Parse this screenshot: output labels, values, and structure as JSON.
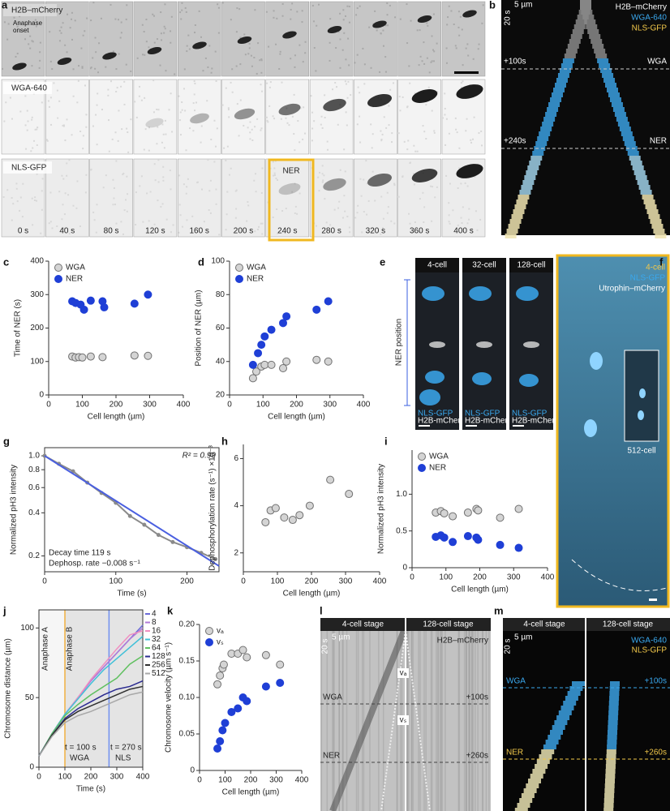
{
  "panel_labels": [
    "a",
    "b",
    "c",
    "d",
    "e",
    "f",
    "g",
    "h",
    "i",
    "j",
    "k",
    "l",
    "m"
  ],
  "panel_a": {
    "rows": [
      "H2B–mCherry",
      "WGA-640",
      "NLS-GFP"
    ],
    "annotation": "Anaphase onset",
    "box_label": "NER",
    "times": [
      "0 s",
      "40 s",
      "80 s",
      "120 s",
      "160 s",
      "200 s",
      "240 s",
      "280 s",
      "320 s",
      "360 s",
      "400 s"
    ]
  },
  "panel_b": {
    "channels": [
      "H2B–mCherry",
      "WGA-640",
      "NLS-GFP"
    ],
    "time_scale": "20 s",
    "length_scale": "5 µm",
    "markers": [
      {
        "time": "+100s",
        "event": "WGA"
      },
      {
        "time": "+240s",
        "event": "NER"
      }
    ]
  },
  "panel_e": {
    "columns": [
      "4-cell",
      "32-cell",
      "128-cell"
    ],
    "axis_label": "NER position",
    "channels": [
      "NLS-GFP",
      "H2B-mCherry"
    ]
  },
  "panel_f": {
    "channels": [
      "4-cell",
      "NLS-GFP",
      "Utrophin–mCherry"
    ],
    "inset_label": "512-cell"
  },
  "panel_l": {
    "stages": [
      "4-cell stage",
      "128-cell stage"
    ],
    "time_scale": "20 s",
    "length_scale": "5 µm",
    "channel": "H2B–mCherry",
    "velocity_labels": [
      "vₐ",
      "vₛ"
    ],
    "markers": [
      {
        "time": "+100s",
        "event": "WGA"
      },
      {
        "time": "+260s",
        "event": "NER"
      }
    ]
  },
  "panel_m": {
    "stages": [
      "4-cell stage",
      "128-cell stage"
    ],
    "time_scale": "20 s",
    "length_scale": "5 µm",
    "channels": [
      "WGA-640",
      "NLS-GFP"
    ],
    "markers": [
      {
        "time": "+100s",
        "event": "WGA"
      },
      {
        "time": "+260s",
        "event": "NER"
      }
    ]
  },
  "chart_data": [
    {
      "type": "scatter",
      "xlabel": "Cell length (µm)",
      "ylabel": "Time of NER (s)",
      "xlim": [
        0,
        400
      ],
      "ylim": [
        0,
        400
      ],
      "xticks": [
        0,
        100,
        200,
        300,
        400
      ],
      "yticks": [
        0,
        100,
        200,
        300,
        400
      ],
      "legend": "upper left",
      "series": [
        {
          "name": "WGA",
          "color": "#d4d4d4",
          "edgecolor": "#707070",
          "x": [
            70,
            80,
            90,
            100,
            125,
            160,
            255,
            295
          ],
          "values": [
            115,
            112,
            113,
            112,
            115,
            113,
            118,
            117
          ]
        },
        {
          "name": "NER",
          "color": "#1f3fd6",
          "x": [
            70,
            80,
            95,
            105,
            125,
            160,
            165,
            255,
            295
          ],
          "values": [
            280,
            275,
            270,
            255,
            282,
            280,
            262,
            273,
            300
          ]
        }
      ]
    },
    {
      "type": "scatter",
      "xlabel": "Cell length (µm)",
      "ylabel": "Position of NER (µm)",
      "xlim": [
        0,
        400
      ],
      "ylim": [
        20,
        100
      ],
      "xticks": [
        0,
        100,
        200,
        300,
        400
      ],
      "yticks": [
        20,
        40,
        60,
        80,
        100
      ],
      "legend": "upper left",
      "series": [
        {
          "name": "WGA",
          "color": "#d4d4d4",
          "edgecolor": "#707070",
          "x": [
            70,
            80,
            95,
            105,
            125,
            160,
            170,
            260,
            295
          ],
          "values": [
            30,
            34,
            37,
            38,
            38,
            36,
            40,
            41,
            40
          ]
        },
        {
          "name": "NER",
          "color": "#1f3fd6",
          "x": [
            70,
            85,
            95,
            105,
            125,
            160,
            170,
            260,
            295
          ],
          "values": [
            38,
            45,
            50,
            55,
            59,
            63,
            67,
            71,
            76
          ]
        }
      ]
    },
    {
      "type": "line",
      "ylog": true,
      "xlabel": "Time (s)",
      "ylabel": "Normalized pH3 intensity",
      "xlim": [
        0,
        245
      ],
      "ylim": [
        0.155,
        1.14
      ],
      "xticks": [
        0,
        100,
        200
      ],
      "yticks": [
        0.2,
        0.4,
        0.6,
        0.8,
        {
          "value": 1,
          "label": "1.0"
        }
      ],
      "x": [
        0,
        20,
        40,
        60,
        80,
        100,
        120,
        140,
        160,
        180,
        200,
        220,
        240
      ],
      "series": [
        {
          "color": "#8a8a8a",
          "values": [
            1.0,
            0.88,
            0.78,
            0.65,
            0.55,
            0.47,
            0.38,
            0.33,
            0.28,
            0.25,
            0.23,
            0.21,
            0.19
          ]
        },
        {
          "color": "#4a5fe0",
          "x": [
            0,
            245
          ],
          "values": [
            1.0,
            0.17
          ]
        }
      ],
      "annotations": [
        {
          "text": "R² = 0.99",
          "color": "#3a4fd6"
        },
        {
          "text": "Decay time 119 s",
          "color": "#3a4fd6"
        },
        {
          "text": "Dephosp. rate −0.008 s⁻¹",
          "color": "#909090"
        }
      ]
    },
    {
      "type": "scatter",
      "xlabel": "Cell length (µm)",
      "ylabel": "Dephosphorylation rate (s⁻¹) ×10⁻³",
      "xlim": [
        0,
        400
      ],
      "ylim": [
        1.2,
        6.6
      ],
      "xticks": [
        0,
        100,
        200,
        300,
        400
      ],
      "yticks": [
        2,
        4,
        6
      ],
      "series": [
        {
          "color": "#d4d4d4",
          "edgecolor": "#707070",
          "x": [
            65,
            80,
            95,
            120,
            145,
            165,
            195,
            255,
            310
          ],
          "values": [
            3.3,
            3.8,
            3.9,
            3.5,
            3.4,
            3.6,
            4.0,
            5.1,
            4.5
          ]
        }
      ]
    },
    {
      "type": "scatter",
      "xlabel": "Cell length (µm)",
      "ylabel": "Normalized pH3 intensity",
      "xlim": [
        0,
        400
      ],
      "ylim": [
        0,
        1.6
      ],
      "xticks": [
        0,
        100,
        200,
        300,
        400
      ],
      "yticks": [
        0,
        0.5,
        {
          "value": 1,
          "label": "1.0"
        }
      ],
      "legend": "upper left",
      "series": [
        {
          "name": "WGA",
          "color": "#d4d4d4",
          "edgecolor": "#707070",
          "x": [
            70,
            85,
            95,
            120,
            165,
            190,
            195,
            260,
            315
          ],
          "values": [
            0.75,
            0.77,
            0.74,
            0.7,
            0.75,
            0.8,
            0.78,
            0.68,
            0.8
          ]
        },
        {
          "name": "NER",
          "color": "#1f3fd6",
          "x": [
            70,
            85,
            95,
            120,
            165,
            190,
            195,
            260,
            315
          ],
          "values": [
            0.42,
            0.44,
            0.41,
            0.35,
            0.43,
            0.41,
            0.38,
            0.31,
            0.27
          ]
        }
      ]
    },
    {
      "type": "line",
      "xlabel": "Time (s)",
      "ylabel": "Chromosome distance (µm)",
      "xlim": [
        0,
        400
      ],
      "ylim": [
        0,
        113
      ],
      "xticks": [
        0,
        100,
        200,
        300,
        400
      ],
      "yticks": [
        0,
        50,
        100
      ],
      "legend": "right",
      "x": [
        0,
        50,
        100,
        150,
        200,
        250,
        300,
        350,
        400
      ],
      "series": [
        {
          "name": "4",
          "color": "#6a6ad8",
          "values": [
            8,
            24,
            38,
            50,
            62,
            72,
            82,
            92,
            102
          ]
        },
        {
          "name": "8",
          "color": "#b07ad8",
          "values": [
            8,
            24,
            38,
            50,
            62,
            72,
            82,
            92,
            100
          ]
        },
        {
          "name": "16",
          "color": "#f08fc0",
          "values": [
            8,
            24,
            38,
            50,
            63,
            74,
            85,
            95,
            98
          ]
        },
        {
          "name": "32",
          "color": "#40c0d8",
          "values": [
            8,
            24,
            38,
            49,
            60,
            70,
            78,
            86,
            94
          ]
        },
        {
          "name": "64",
          "color": "#60c060",
          "values": [
            8,
            24,
            37,
            45,
            52,
            58,
            64,
            74,
            80
          ]
        },
        {
          "name": "128",
          "color": "#2a2a90",
          "values": [
            8,
            23,
            35,
            42,
            47,
            52,
            56,
            58,
            62
          ]
        },
        {
          "name": "256",
          "color": "#303030",
          "values": [
            8,
            23,
            34,
            40,
            44,
            48,
            52,
            56,
            58
          ]
        },
        {
          "name": "512",
          "color": "#a8a8a8",
          "values": [
            8,
            22,
            32,
            37,
            40,
            44,
            48,
            52,
            54
          ]
        }
      ],
      "vlines": [
        {
          "x": 100,
          "color": "#f0b040"
        },
        {
          "x": 270,
          "color": "#7090f0"
        }
      ],
      "annotations": [
        {
          "text": "Anaphase A",
          "color": "#404040"
        },
        {
          "text": "Anaphase B",
          "color": "#909090"
        },
        {
          "text": "t = 100 s",
          "color": "#e0a020"
        },
        {
          "text": "WGA",
          "color": "#e0a020"
        },
        {
          "text": "t = 270 s",
          "color": "#4a60e0"
        },
        {
          "text": "NLS",
          "color": "#4a60e0"
        }
      ]
    },
    {
      "type": "scatter",
      "xlabel": "Cell length (µm)",
      "ylabel": "Chromosome velocity (µm s⁻¹)",
      "xlim": [
        0,
        400
      ],
      "ylim": [
        0,
        0.2
      ],
      "xticks": [
        0,
        100,
        200,
        300,
        400
      ],
      "yticks": [
        0,
        0.05,
        {
          "value": 0.1,
          "label": "0.10"
        },
        0.15,
        {
          "value": 0.2,
          "label": "0.20"
        }
      ],
      "legend": "upper left",
      "series": [
        {
          "name": "vₐ",
          "color": "#d4d4d4",
          "edgecolor": "#707070",
          "x": [
            70,
            80,
            90,
            95,
            125,
            150,
            170,
            185,
            260,
            315
          ],
          "values": [
            0.118,
            0.13,
            0.14,
            0.145,
            0.16,
            0.16,
            0.165,
            0.155,
            0.158,
            0.145
          ]
        },
        {
          "name": "vₛ",
          "color": "#1f3fd6",
          "x": [
            70,
            80,
            90,
            100,
            125,
            150,
            170,
            185,
            260,
            315
          ],
          "values": [
            0.03,
            0.04,
            0.055,
            0.065,
            0.08,
            0.085,
            0.1,
            0.095,
            0.115,
            0.12
          ]
        }
      ]
    }
  ]
}
